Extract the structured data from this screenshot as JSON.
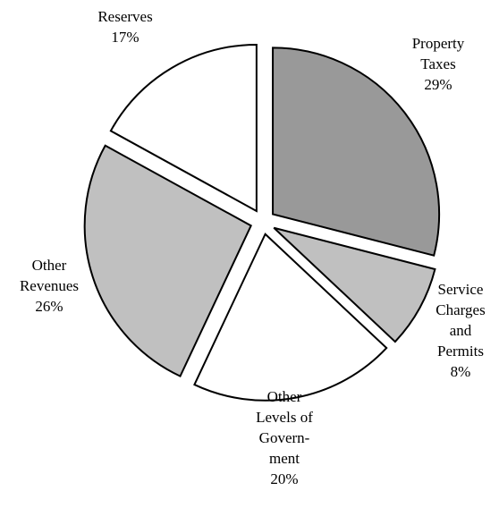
{
  "chart_data": {
    "type": "pie",
    "categories": [
      [
        "Property",
        "Taxes"
      ],
      [
        "Service",
        "Charges",
        "and",
        "Permits"
      ],
      [
        "Other",
        "Levels of",
        "Govern-",
        "ment"
      ],
      [
        "Other",
        "Revenues"
      ],
      [
        "Reserves"
      ]
    ],
    "values": [
      29,
      8,
      20,
      26,
      17
    ],
    "value_labels": [
      "29%",
      "8%",
      "20%",
      "26%",
      "17%"
    ],
    "colors": [
      "#999999",
      "#c0c0c0",
      "#ffffff",
      "#c0c0c0",
      "#ffffff"
    ]
  }
}
